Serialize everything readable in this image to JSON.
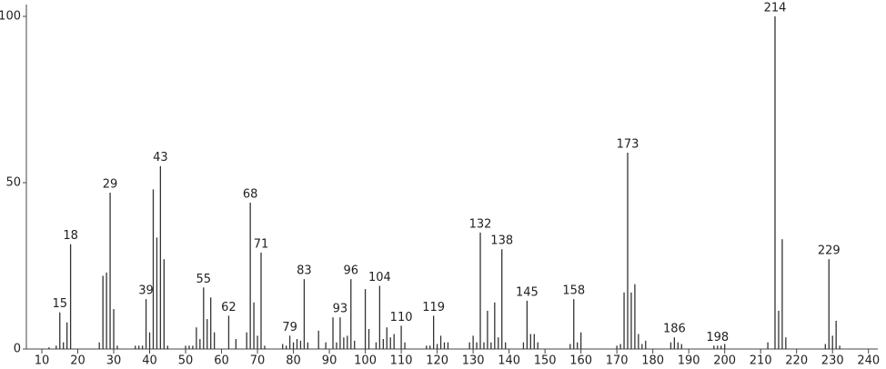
{
  "chart_data": {
    "type": "stick",
    "x": [
      12,
      14,
      15,
      16,
      17,
      18,
      26,
      27,
      28,
      29,
      30,
      31,
      36,
      37,
      38,
      39,
      40,
      41,
      42,
      43,
      44,
      45,
      50,
      51,
      52,
      53,
      54,
      55,
      56,
      57,
      58,
      62,
      64,
      67,
      68,
      69,
      70,
      71,
      72,
      77,
      78,
      79,
      80,
      81,
      82,
      83,
      84,
      87,
      89,
      91,
      92,
      93,
      94,
      95,
      96,
      97,
      100,
      101,
      103,
      104,
      105,
      106,
      107,
      108,
      110,
      111,
      117,
      118,
      119,
      120,
      121,
      122,
      123,
      129,
      130,
      131,
      132,
      133,
      134,
      135,
      136,
      137,
      138,
      139,
      144,
      145,
      146,
      147,
      148,
      157,
      158,
      159,
      160,
      170,
      171,
      172,
      173,
      174,
      175,
      176,
      177,
      178,
      185,
      186,
      187,
      188,
      197,
      198,
      199,
      200,
      212,
      214,
      215,
      216,
      217,
      228,
      229,
      230,
      231,
      232
    ],
    "values": [
      0.5,
      1,
      11,
      2,
      8,
      31.5,
      2,
      22,
      23,
      47,
      12,
      1,
      1,
      1,
      1,
      15,
      5,
      48,
      33.5,
      55,
      27,
      1,
      1,
      1,
      1,
      6.5,
      3,
      18.5,
      9,
      15.5,
      5,
      10,
      3,
      5,
      44,
      14,
      4,
      29,
      1,
      1.5,
      1,
      4,
      2,
      3,
      2.5,
      21,
      2,
      5.5,
      2,
      9.5,
      2,
      9.5,
      3.5,
      4,
      21,
      2.5,
      18,
      6,
      2,
      19,
      3,
      6.5,
      3.5,
      4.5,
      7,
      2,
      1,
      1,
      10,
      1.5,
      4,
      2,
      2,
      2,
      4,
      2,
      35,
      2,
      11.5,
      2,
      14,
      3.5,
      30,
      2,
      2,
      14.5,
      4.5,
      4.5,
      2,
      1.5,
      15,
      2,
      5,
      1,
      1.5,
      17,
      59,
      17,
      19.5,
      4.5,
      1.5,
      2.5,
      2,
      3.5,
      2,
      1.5,
      1,
      1,
      1,
      1.5,
      2,
      100,
      11.5,
      33,
      3.5,
      1.5,
      27,
      4,
      8.5,
      1
    ],
    "annotations": [
      15,
      18,
      29,
      39,
      43,
      55,
      62,
      68,
      71,
      79,
      83,
      93,
      96,
      104,
      110,
      119,
      132,
      138,
      145,
      158,
      173,
      186,
      198,
      214,
      229
    ],
    "xlim": [
      5.7,
      242.6
    ],
    "ylim": [
      0,
      100
    ],
    "xticks": [
      10,
      20,
      30,
      40,
      50,
      60,
      70,
      80,
      90,
      100,
      110,
      120,
      130,
      140,
      150,
      160,
      170,
      180,
      190,
      200,
      210,
      220,
      230,
      240
    ],
    "yticks": [
      0,
      50,
      100
    ]
  }
}
